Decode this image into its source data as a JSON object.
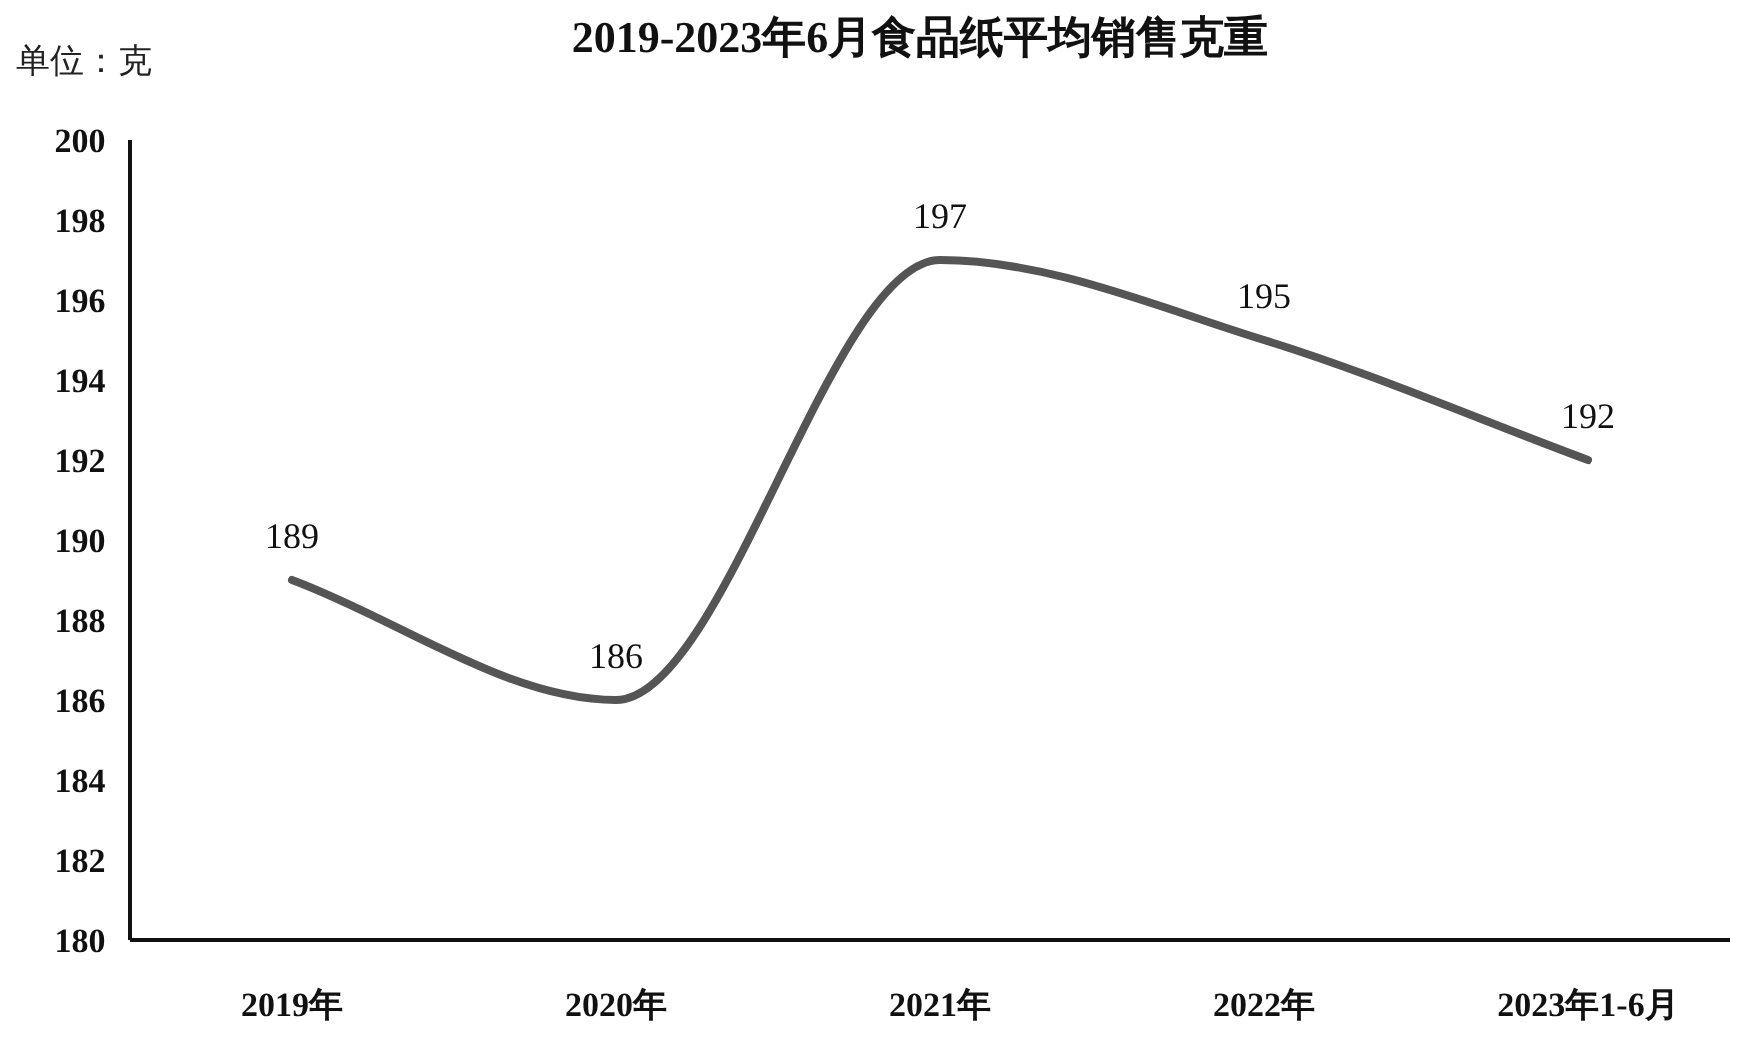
{
  "chart_data": {
    "type": "line",
    "title": "2019-2023年6月食品纸平均销售克重",
    "annotations": [
      "单位：克"
    ],
    "categories": [
      "2019年",
      "2020年",
      "2021年",
      "2022年",
      "2023年1-6月"
    ],
    "values": [
      189,
      186,
      197,
      195,
      192
    ],
    "color": "#555555",
    "line_style": "solid",
    "marker": "none",
    "ylim": [
      180,
      200
    ],
    "yticks": [
      180,
      182,
      184,
      186,
      188,
      190,
      192,
      194,
      196,
      198,
      200
    ],
    "data_labels": true,
    "grid": false
  }
}
